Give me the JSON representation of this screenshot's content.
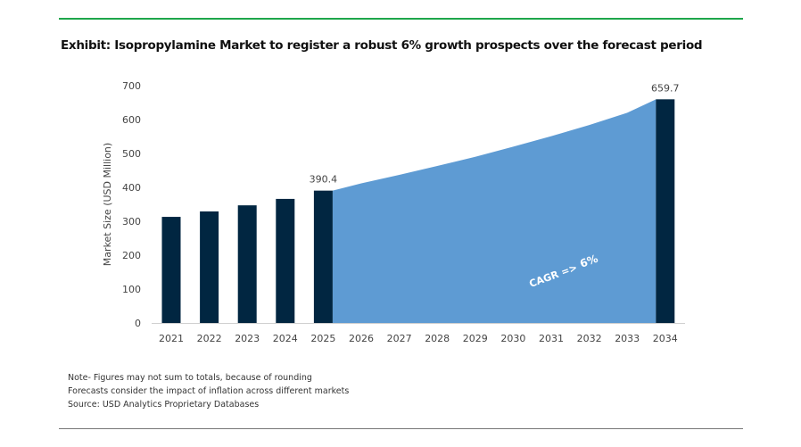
{
  "title": "Exhibit: Isopropylamine Market to register a robust 6% growth prospects over the forecast period",
  "notes": [
    "Note- Figures may not sum to totals, because of rounding",
    "Forecasts consider the impact of inflation across different markets",
    "Source: USD Analytics Proprietary Databases"
  ],
  "colors": {
    "bar": "#012641",
    "area": "#5e9bd3",
    "accent_line": "#1ea64b"
  },
  "chart_data": {
    "type": "bar",
    "title": "Exhibit: Isopropylamine Market to register a robust 6% growth prospects over the forecast period",
    "xlabel": "",
    "ylabel": "Market Size (USD Million)",
    "ylim": [
      0,
      700
    ],
    "yticks": [
      0,
      100,
      200,
      300,
      400,
      500,
      600,
      700
    ],
    "categories": [
      "2021",
      "2022",
      "2023",
      "2024",
      "2025",
      "2026",
      "2027",
      "2028",
      "2029",
      "2030",
      "2031",
      "2032",
      "2033",
      "2034"
    ],
    "bars": {
      "2021": 313,
      "2022": 329,
      "2023": 347,
      "2024": 366,
      "2025": 390.4,
      "2034": 659.7
    },
    "forecast_area": [
      390.4,
      412,
      437,
      463,
      490,
      520,
      551,
      584,
      620,
      659.7
    ],
    "data_labels": [
      {
        "category": "2025",
        "text": "390.4"
      },
      {
        "category": "2034",
        "text": "659.7"
      }
    ],
    "annotation": {
      "label": "CAGR =>",
      "value": "6%"
    },
    "grid": false
  }
}
